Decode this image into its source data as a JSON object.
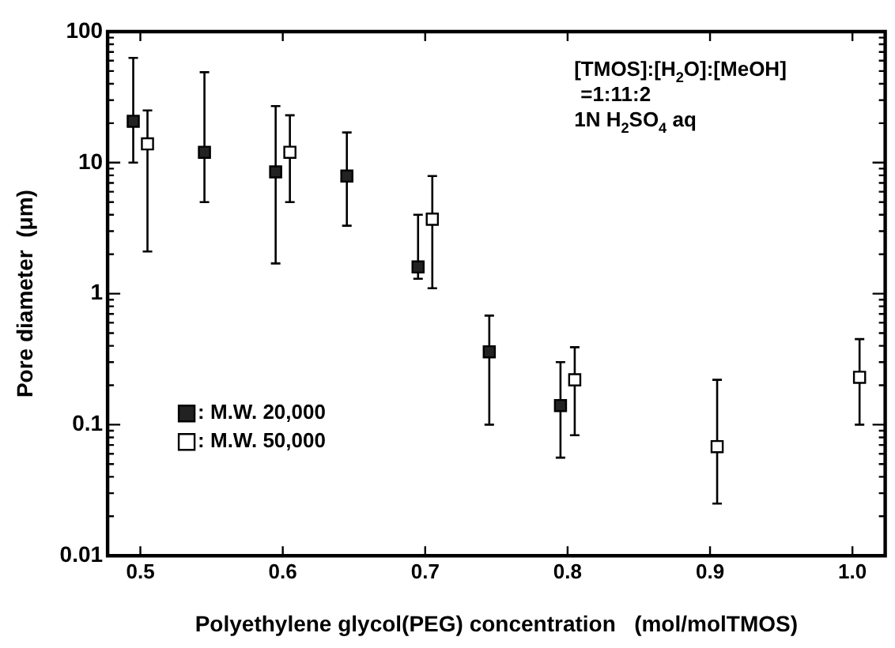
{
  "chart_data": {
    "type": "scatter",
    "xlabel": "Polyethylene glycol(PEG) concentration   (mol/molTMOS)",
    "ylabel": "Pore diameter  (μm)",
    "xlim": [
      0.477,
      1.023
    ],
    "xticks": [
      0.5,
      0.6,
      0.7,
      0.8,
      0.9,
      {
        "value": 1,
        "label": "1.0"
      }
    ],
    "ylim": [
      0.01,
      100
    ],
    "yticks": [
      0.01,
      0.1,
      1,
      10,
      100
    ],
    "log": "y",
    "grid": false,
    "legend": "bottom left",
    "marker": "square",
    "annotations": [
      "[TMOS]:[H$_{2}$O]:[MeOH]",
      "=1:11:2",
      "1N H$_{2}$SO$_{4}$ aq"
    ],
    "series": [
      {
        "name": ": M.W. 20,000",
        "color": "#222222",
        "x": [
          0.495,
          0.545,
          0.595,
          0.645,
          0.695,
          0.745,
          0.795
        ],
        "values": [
          20.7,
          12,
          8.5,
          7.9,
          1.6,
          0.36,
          0.14
        ],
        "errors": [
          [
            10,
            63
          ],
          [
            5,
            49
          ],
          [
            1.7,
            27
          ],
          [
            3.3,
            17
          ],
          [
            1.3,
            4
          ],
          [
            0.1,
            0.68
          ],
          [
            0.056,
            0.3
          ]
        ]
      },
      {
        "name": ": M.W. 50,000",
        "color": "#ffffff",
        "x": [
          0.505,
          0.605,
          0.705,
          0.805,
          0.905,
          1.005
        ],
        "values": [
          13.9,
          12,
          3.7,
          0.22,
          0.068,
          0.23
        ],
        "errors": [
          [
            2.1,
            25
          ],
          [
            5,
            23
          ],
          [
            1.1,
            7.9
          ],
          [
            0.083,
            0.39
          ],
          [
            0.025,
            0.22
          ],
          [
            0.1,
            0.45
          ]
        ]
      }
    ]
  }
}
